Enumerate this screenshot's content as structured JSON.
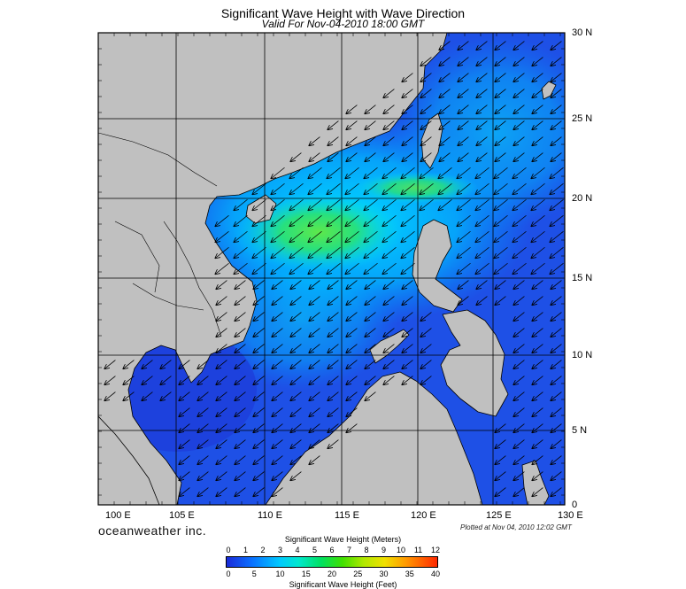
{
  "title": "Significant Wave Height with Wave Direction",
  "subtitle": "Valid For Nov-04-2010 18:00 GMT",
  "lon_labels": [
    "100 E",
    "105 E",
    "110 E",
    "115 E",
    "120 E",
    "125 E",
    "130 E"
  ],
  "lat_labels": [
    "30 N",
    "25 N",
    "20 N",
    "15 N",
    "10 N",
    "5 N",
    "0"
  ],
  "brand": "oceanweather inc.",
  "plotted_note": "Plotted at Nov 04, 2010 12:02 GMT",
  "colorbar": {
    "meters_title": "Significant Wave Height (Meters)",
    "feet_title": "Significant Wave Height (Feet)",
    "meters_ticks": [
      "0",
      "1",
      "2",
      "3",
      "4",
      "5",
      "6",
      "7",
      "8",
      "9",
      "10",
      "11",
      "12"
    ],
    "feet_ticks": [
      "0",
      "5",
      "10",
      "15",
      "20",
      "25",
      "30",
      "35",
      "40"
    ]
  },
  "colors": {
    "land": "#c0c0c0",
    "water_low": "#1e50e6",
    "water_mid": "#00d2ff",
    "water_high": "#4ae050"
  }
}
